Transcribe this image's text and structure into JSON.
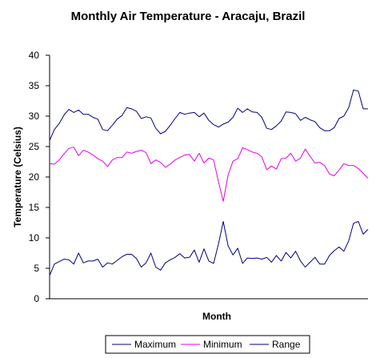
{
  "chart_data": {
    "type": "line",
    "title": "Monthly Air Temperature - Aracaju, Brazil",
    "xlabel": "Month",
    "ylabel": "Temperature (Celsius)",
    "ylim": [
      0,
      40
    ],
    "yticks": [
      "0",
      "5",
      "10",
      "15",
      "20",
      "25",
      "30",
      "35",
      "40"
    ],
    "grid": false,
    "legend_position": "bottom",
    "series": [
      {
        "name": "Maximum",
        "color": "#000080",
        "values": [
          26.0,
          27.8,
          28.8,
          30.2,
          31.1,
          30.6,
          31.0,
          30.3,
          30.3,
          29.8,
          29.5,
          27.8,
          27.6,
          28.5,
          29.5,
          30.1,
          31.4,
          31.2,
          30.8,
          29.6,
          29.9,
          29.7,
          28.0,
          27.1,
          27.5,
          28.5,
          29.6,
          30.6,
          30.3,
          30.5,
          30.6,
          29.9,
          30.5,
          29.3,
          28.6,
          28.2,
          28.7,
          29.0,
          29.8,
          31.3,
          30.6,
          31.2,
          30.7,
          30.6,
          29.8,
          28.0,
          27.8,
          28.4,
          29.2,
          30.7,
          30.6,
          30.4,
          29.3,
          29.8,
          29.4,
          29.1,
          28.1,
          27.6,
          27.6,
          28.1,
          29.6,
          30.0,
          31.4,
          34.3,
          34.1,
          31.2,
          31.2
        ]
      },
      {
        "name": "Minimum",
        "color": "#e600e6",
        "values": [
          22.2,
          22.1,
          22.8,
          23.8,
          24.7,
          24.9,
          23.5,
          24.4,
          24.1,
          23.6,
          23.0,
          22.6,
          21.7,
          22.8,
          23.2,
          23.2,
          24.1,
          23.9,
          24.2,
          24.4,
          24.0,
          22.2,
          22.8,
          22.4,
          21.6,
          22.1,
          22.8,
          23.2,
          23.6,
          23.7,
          22.6,
          23.9,
          22.3,
          23.1,
          22.8,
          19.2,
          16.0,
          20.3,
          22.6,
          23.0,
          24.8,
          24.5,
          24.1,
          23.9,
          23.3,
          21.2,
          21.8,
          21.3,
          23.0,
          23.1,
          23.9,
          22.6,
          23.1,
          24.6,
          23.4,
          22.3,
          22.4,
          21.9,
          20.5,
          20.2,
          21.1,
          22.2,
          21.9,
          21.9,
          21.4,
          20.6,
          19.8
        ]
      },
      {
        "name": "Range",
        "color": "#000080",
        "values": [
          3.8,
          5.7,
          6.1,
          6.5,
          6.4,
          5.7,
          7.5,
          5.9,
          6.2,
          6.2,
          6.5,
          5.2,
          5.9,
          5.7,
          6.3,
          6.9,
          7.3,
          7.3,
          6.6,
          5.2,
          5.9,
          7.5,
          5.2,
          4.7,
          5.9,
          6.4,
          6.8,
          7.4,
          6.7,
          6.8,
          8.0,
          6.0,
          8.2,
          6.2,
          5.8,
          9.0,
          12.7,
          8.7,
          7.2,
          8.3,
          5.8,
          6.7,
          6.6,
          6.7,
          6.5,
          6.8,
          6.0,
          7.1,
          6.2,
          7.6,
          6.7,
          7.8,
          6.2,
          5.2,
          6.0,
          6.8,
          5.7,
          5.7,
          7.1,
          7.9,
          8.5,
          7.8,
          9.5,
          12.4,
          12.7,
          10.6,
          11.4
        ]
      }
    ]
  }
}
